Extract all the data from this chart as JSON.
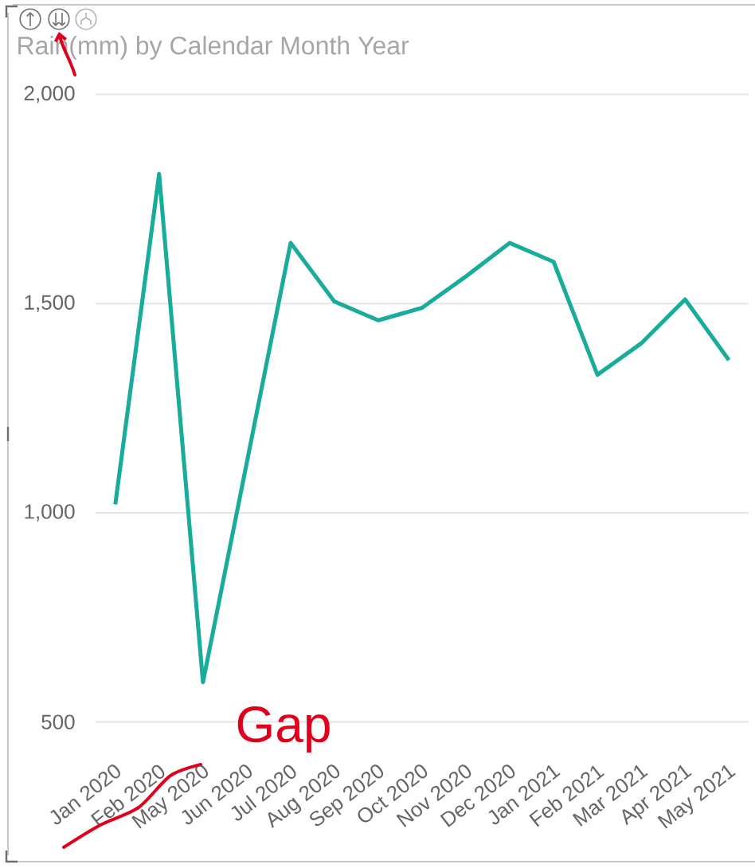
{
  "chart_data": {
    "type": "line",
    "title": "Rain(mm) by Calendar Month Year",
    "categories": [
      "Jan 2020",
      "Feb 2020",
      "May 2020",
      "Jun 2020",
      "Jul 2020",
      "Aug 2020",
      "Sep 2020",
      "Oct 2020",
      "Nov 2020",
      "Dec 2020",
      "Jan 2021",
      "Feb 2021",
      "Mar 2021",
      "Apr 2021",
      "May 2021"
    ],
    "values": [
      1020,
      1810,
      595,
      1120,
      1645,
      1505,
      1460,
      1490,
      1565,
      1645,
      1600,
      1330,
      1405,
      1510,
      1365
    ],
    "color": "#19ac9a",
    "ylim": [
      500,
      2000
    ],
    "yticks": [
      500,
      {
        "value": 1000,
        "label": "1,000"
      },
      {
        "value": 1500,
        "label": "1,500"
      },
      {
        "value": 2000,
        "label": "2,000"
      }
    ],
    "grid": "y",
    "annotations": [
      "Gap"
    ]
  }
}
